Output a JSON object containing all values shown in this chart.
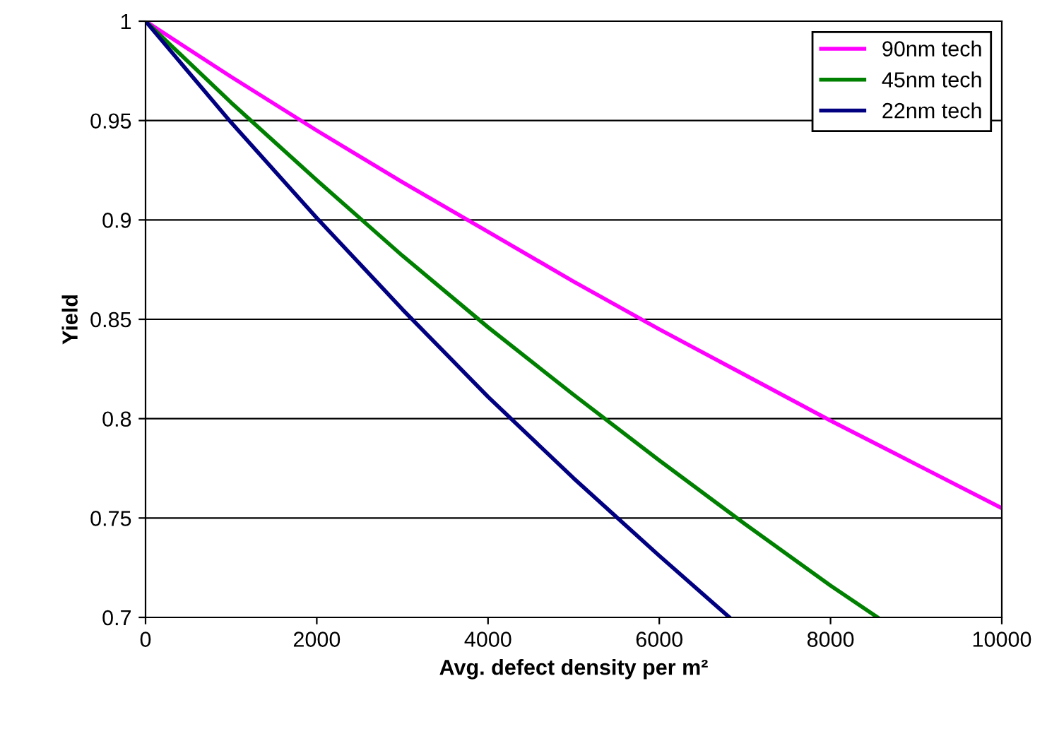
{
  "chart_data": {
    "type": "line",
    "xlabel": "Avg. defect density per m²",
    "ylabel": "Yield",
    "xlim": [
      0,
      10000
    ],
    "xticks": [
      0,
      2000,
      4000,
      6000,
      8000,
      10000
    ],
    "ylim": [
      0.7,
      1
    ],
    "yticks": [
      0.7,
      0.75,
      0.8,
      0.85,
      0.9,
      0.95,
      1
    ],
    "grid": "y",
    "legend": "top right",
    "marker": "none",
    "line_style": "solid",
    "series": [
      {
        "name": "90nm tech",
        "color": "#ff00ff",
        "x": [
          0,
          1000,
          2000,
          3000,
          4000,
          5000,
          6000,
          7000,
          8000,
          9000,
          10000
        ],
        "values": [
          1,
          0.972,
          0.945,
          0.919,
          0.894,
          0.869,
          0.845,
          0.822,
          0.799,
          0.777,
          0.755
        ]
      },
      {
        "name": "45nm tech",
        "color": "#008000",
        "x": [
          0,
          1000,
          2000,
          3000,
          4000,
          5000,
          6000,
          7000,
          8000,
          8550
        ],
        "values": [
          1,
          0.959,
          0.92,
          0.882,
          0.846,
          0.812,
          0.779,
          0.747,
          0.716,
          0.7
        ]
      },
      {
        "name": "22nm tech",
        "color": "#000080",
        "x": [
          0,
          1000,
          2000,
          3000,
          4000,
          5000,
          6000,
          6820
        ],
        "values": [
          1,
          0.949,
          0.901,
          0.855,
          0.811,
          0.77,
          0.731,
          0.7
        ]
      }
    ]
  }
}
